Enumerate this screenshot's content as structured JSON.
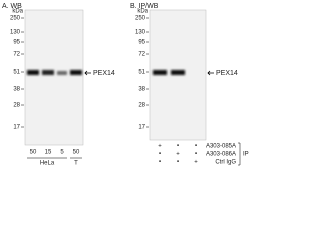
{
  "panels": [
    {
      "title": "A. WB",
      "unit": "kDa",
      "markers": [
        "250",
        "130",
        "95",
        "72",
        "51",
        "38",
        "28",
        "17"
      ],
      "target": "PEX14",
      "lane_amounts": [
        "50",
        "15",
        "5",
        "50"
      ],
      "groups": [
        "HeLa",
        "T"
      ]
    },
    {
      "title": "B. IP/WB",
      "unit": "kDa",
      "markers": [
        "250",
        "130",
        "95",
        "72",
        "51",
        "38",
        "28",
        "17"
      ],
      "target": "PEX14",
      "conditions": [
        {
          "name": "A303-085A",
          "signs": [
            "+",
            "•",
            "•"
          ]
        },
        {
          "name": "A303-086A",
          "signs": [
            "•",
            "+",
            "•"
          ]
        },
        {
          "name": "Ctrl IgG",
          "signs": [
            "•",
            "•",
            "+"
          ]
        }
      ],
      "bracket": "IP"
    }
  ]
}
